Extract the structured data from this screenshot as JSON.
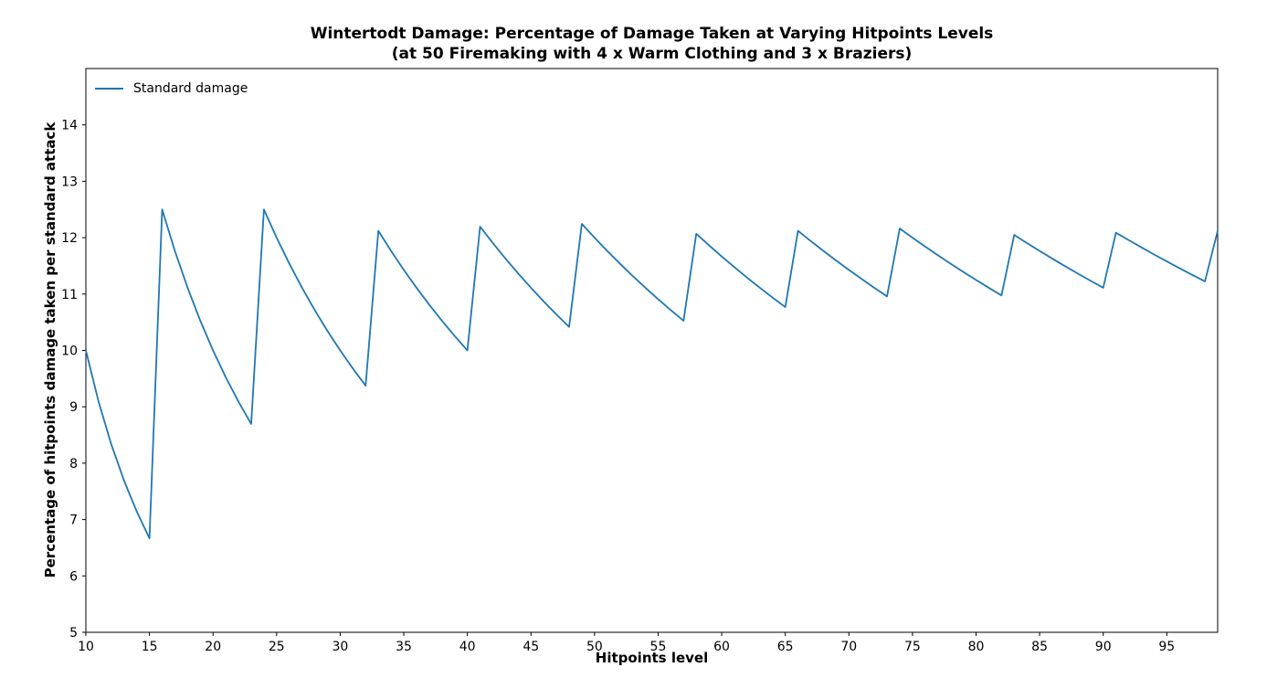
{
  "chart_data": {
    "type": "line",
    "title": "Wintertodt Damage: Percentage of Damage Taken at Varying Hitpoints Levels (at 50 Firemaking with 4 x Warm Clothing and 3 x Braziers)",
    "title_lines": [
      "Wintertodt Damage: Percentage of Damage Taken at Varying Hitpoints Levels",
      "(at 50 Firemaking with 4 x Warm Clothing and 3 x Braziers)"
    ],
    "xlabel": "Hitpoints level",
    "ylabel": "Percentage of hitpoints damage taken per standard attack",
    "xlim": [
      10,
      99
    ],
    "ylim": [
      5,
      15
    ],
    "xticks": [
      10,
      15,
      20,
      25,
      30,
      35,
      40,
      45,
      50,
      55,
      60,
      65,
      70,
      75,
      80,
      85,
      90,
      95
    ],
    "yticks": [
      5,
      6,
      7,
      8,
      9,
      10,
      11,
      12,
      13,
      14
    ],
    "grid": false,
    "legend": {
      "position": "upper left",
      "frame": false
    },
    "series": [
      {
        "name": "Standard damage",
        "color": "#1f77b4",
        "x": [
          10,
          11,
          12,
          13,
          14,
          15,
          16,
          17,
          18,
          19,
          20,
          21,
          22,
          23,
          24,
          25,
          26,
          27,
          28,
          29,
          30,
          31,
          32,
          33,
          34,
          35,
          36,
          37,
          38,
          39,
          40,
          41,
          42,
          43,
          44,
          45,
          46,
          47,
          48,
          49,
          50,
          51,
          52,
          53,
          54,
          55,
          56,
          57,
          58,
          59,
          60,
          61,
          62,
          63,
          64,
          65,
          66,
          67,
          68,
          69,
          70,
          71,
          72,
          73,
          74,
          75,
          76,
          77,
          78,
          79,
          80,
          81,
          82,
          83,
          84,
          85,
          86,
          87,
          88,
          89,
          90,
          91,
          92,
          93,
          94,
          95,
          96,
          97,
          98,
          99
        ],
        "y": [
          10.0,
          9.0909,
          8.3333,
          7.6923,
          7.1429,
          6.6667,
          12.5,
          11.7647,
          11.1111,
          10.5263,
          10.0,
          9.5238,
          9.0909,
          8.6957,
          12.5,
          12.0,
          11.5385,
          11.1111,
          10.7143,
          10.3448,
          10.0,
          9.6774,
          9.375,
          12.1212,
          11.7647,
          11.4286,
          11.1111,
          10.8108,
          10.5263,
          10.2564,
          10.0,
          12.1951,
          11.9048,
          11.6279,
          11.3636,
          11.1111,
          10.8696,
          10.6383,
          10.4167,
          12.2449,
          12.0,
          11.7647,
          11.5385,
          11.3208,
          11.1111,
          10.9091,
          10.7143,
          10.5263,
          12.069,
          11.8644,
          11.6667,
          11.4754,
          11.2903,
          11.1111,
          10.9375,
          10.7692,
          12.1212,
          11.9403,
          11.7647,
          11.5942,
          11.4286,
          11.2676,
          11.1111,
          10.9589,
          12.1622,
          12.0,
          11.8421,
          11.6883,
          11.5385,
          11.3924,
          11.25,
          11.1111,
          10.9756,
          12.0482,
          11.9048,
          11.7647,
          11.6279,
          11.4943,
          11.3636,
          11.236,
          11.1111,
          12.0879,
          11.9565,
          11.828,
          11.7021,
          11.5789,
          11.4583,
          11.3402,
          11.2245,
          12.1212
        ]
      }
    ]
  }
}
